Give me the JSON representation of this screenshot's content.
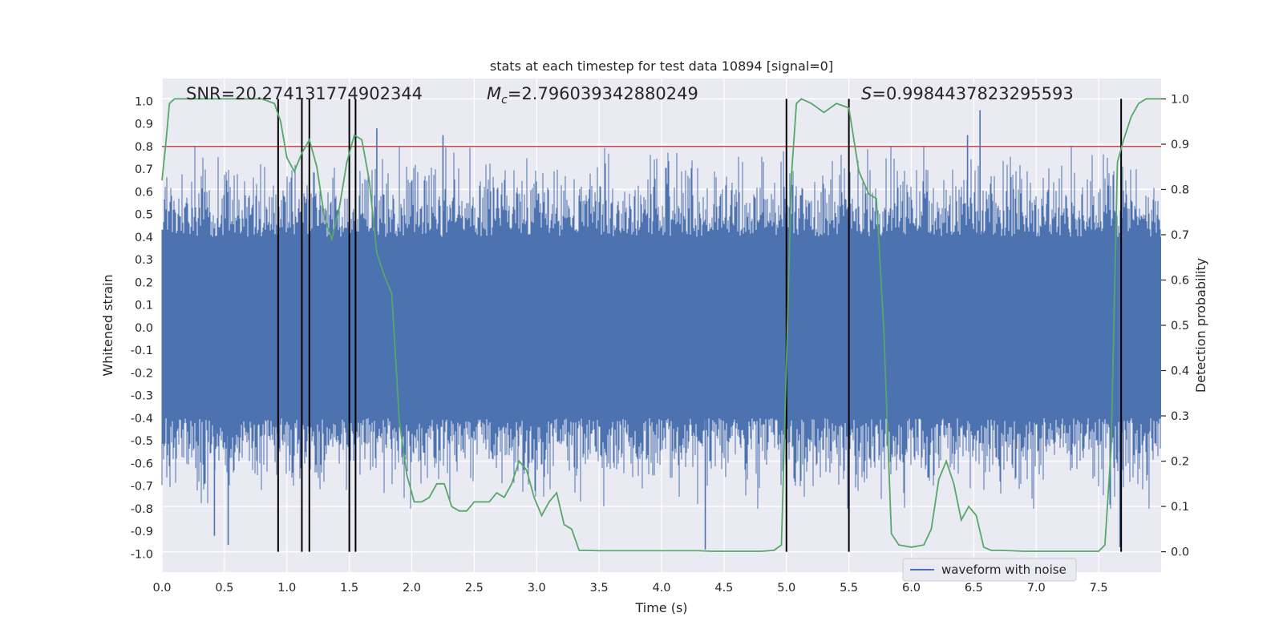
{
  "chart_data": {
    "type": "line",
    "title": "stats at each timestep for test data 10894 [signal=0]",
    "xlabel": "Time (s)",
    "ylabel_left": "Whitened strain",
    "ylabel_right": "Detection probability",
    "xlim": [
      0,
      8
    ],
    "ylim_left": [
      -1.08,
      1.1
    ],
    "ylim_right": [
      -0.045,
      1.045
    ],
    "x_ticks": [
      "0.0",
      "0.5",
      "1.0",
      "1.5",
      "2.0",
      "2.5",
      "3.0",
      "3.5",
      "4.0",
      "4.5",
      "5.0",
      "5.5",
      "6.0",
      "6.5",
      "7.0",
      "7.5"
    ],
    "y_ticks_left": [
      "1.0",
      "0.9",
      "0.8",
      "0.7",
      "0.6",
      "0.5",
      "0.4",
      "0.3",
      "0.2",
      "0.1",
      "0.0",
      "-0.1",
      "-0.2",
      "-0.3",
      "-0.4",
      "-0.5",
      "-0.6",
      "-0.7",
      "-0.8",
      "-0.9",
      "-1.0"
    ],
    "y_ticks_right": [
      "1.0",
      "0.9",
      "0.8",
      "0.7",
      "0.6",
      "0.5",
      "0.4",
      "0.3",
      "0.2",
      "0.1",
      "0.0"
    ],
    "annotations": {
      "snr": "SNR=20.274131774902344",
      "mc_symbol": "M",
      "mc_subscript": "c",
      "mc_value": "=2.796039342880249",
      "s_symbol": "S",
      "s_value": "=0.9984437823295593"
    },
    "threshold": {
      "value": 0.8,
      "axis": "left"
    },
    "vertical_lines": [
      0.93,
      1.12,
      1.18,
      1.5,
      1.55,
      5.0,
      5.5,
      7.68
    ],
    "series": [
      {
        "name": "waveform with noise",
        "axis": "left",
        "kind": "noise",
        "amplitude_envelope": [
          0.4,
          -0.4
        ],
        "notable_peaks": [
          {
            "x": 0.42,
            "y": -0.92
          },
          {
            "x": 0.53,
            "y": -0.96
          },
          {
            "x": 1.72,
            "y": 0.88
          },
          {
            "x": 2.25,
            "y": 0.85
          },
          {
            "x": 4.35,
            "y": -0.98
          },
          {
            "x": 6.55,
            "y": 0.96
          },
          {
            "x": 7.67,
            "y": -0.97
          },
          {
            "x": 6.45,
            "y": 0.85
          }
        ]
      },
      {
        "name": "detection probability",
        "axis": "right",
        "x": [
          0.0,
          0.03,
          0.06,
          0.1,
          0.15,
          0.2,
          0.3,
          0.4,
          0.5,
          0.6,
          0.7,
          0.8,
          0.85,
          0.9,
          0.95,
          1.0,
          1.06,
          1.12,
          1.18,
          1.24,
          1.3,
          1.36,
          1.42,
          1.48,
          1.54,
          1.6,
          1.66,
          1.72,
          1.78,
          1.84,
          1.9,
          1.96,
          2.02,
          2.08,
          2.14,
          2.2,
          2.26,
          2.32,
          2.38,
          2.44,
          2.5,
          2.56,
          2.62,
          2.68,
          2.74,
          2.8,
          2.86,
          2.92,
          2.98,
          3.04,
          3.1,
          3.16,
          3.22,
          3.28,
          3.34,
          3.4,
          3.5,
          3.6,
          3.7,
          3.8,
          3.9,
          4.0,
          4.1,
          4.2,
          4.3,
          4.4,
          4.5,
          4.6,
          4.7,
          4.8,
          4.9,
          4.96,
          5.0,
          5.04,
          5.08,
          5.12,
          5.2,
          5.3,
          5.4,
          5.5,
          5.58,
          5.66,
          5.72,
          5.78,
          5.84,
          5.9,
          6.0,
          6.1,
          6.16,
          6.22,
          6.28,
          6.34,
          6.4,
          6.46,
          6.52,
          6.58,
          6.64,
          6.7,
          6.8,
          6.9,
          7.0,
          7.1,
          7.2,
          7.3,
          7.4,
          7.5,
          7.55,
          7.6,
          7.65,
          7.7,
          7.76,
          7.82,
          7.88,
          7.94,
          8.0
        ],
        "values": [
          0.82,
          0.9,
          0.99,
          1.0,
          1.0,
          1.0,
          1.0,
          1.0,
          1.0,
          1.0,
          1.0,
          1.0,
          0.995,
          0.99,
          0.95,
          0.87,
          0.84,
          0.88,
          0.91,
          0.85,
          0.74,
          0.69,
          0.76,
          0.86,
          0.92,
          0.91,
          0.82,
          0.66,
          0.61,
          0.57,
          0.29,
          0.17,
          0.11,
          0.11,
          0.12,
          0.15,
          0.15,
          0.1,
          0.09,
          0.09,
          0.11,
          0.11,
          0.11,
          0.13,
          0.12,
          0.15,
          0.2,
          0.18,
          0.12,
          0.08,
          0.11,
          0.13,
          0.06,
          0.05,
          0.003,
          0.003,
          0.002,
          0.002,
          0.002,
          0.002,
          0.002,
          0.002,
          0.002,
          0.002,
          0.002,
          0.001,
          0.001,
          0.001,
          0.001,
          0.001,
          0.003,
          0.015,
          0.42,
          0.83,
          0.99,
          1.0,
          0.99,
          0.97,
          0.99,
          0.98,
          0.84,
          0.79,
          0.78,
          0.49,
          0.04,
          0.015,
          0.01,
          0.015,
          0.05,
          0.16,
          0.2,
          0.15,
          0.07,
          0.1,
          0.08,
          0.01,
          0.003,
          0.003,
          0.002,
          0.001,
          0.001,
          0.001,
          0.001,
          0.001,
          0.001,
          0.001,
          0.015,
          0.23,
          0.86,
          0.91,
          0.96,
          0.99,
          1.0,
          1.0,
          1.0
        ]
      }
    ],
    "legend": {
      "label": "waveform with noise",
      "placement": "lower-right"
    },
    "grid": true
  }
}
